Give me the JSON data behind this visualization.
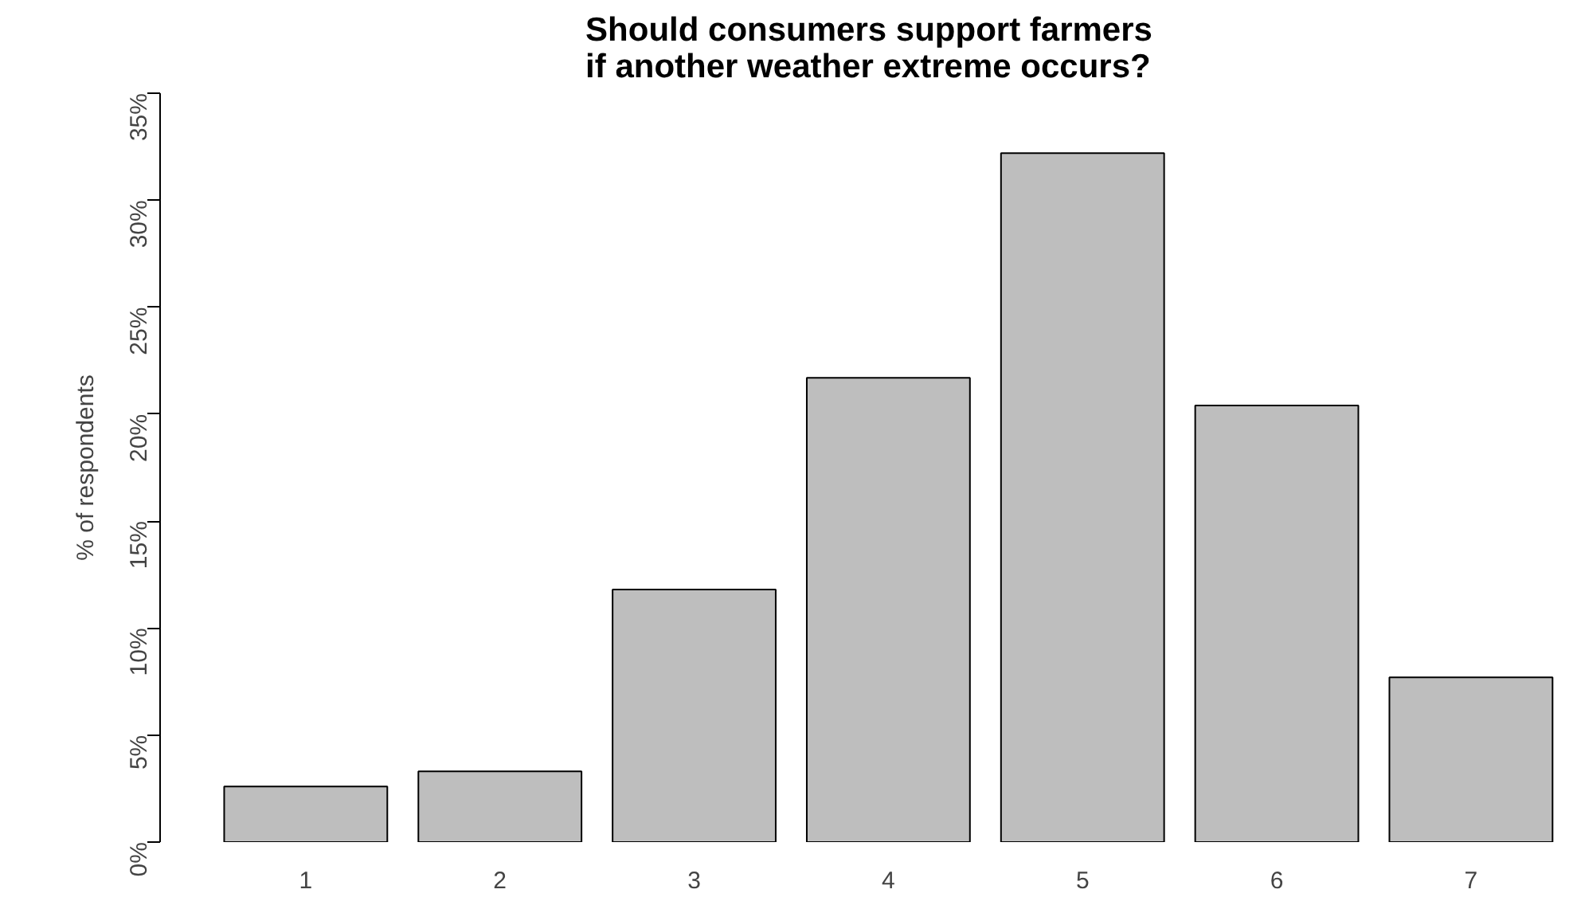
{
  "chart_data": {
    "type": "bar",
    "title": "Should consumers support farmers if another weather extreme occurs?",
    "ylabel": "% of respondents",
    "categories": [
      "1",
      "2",
      "3",
      "4",
      "5",
      "6",
      "7"
    ],
    "values": [
      2.6,
      3.3,
      11.8,
      21.7,
      32.2,
      20.4,
      7.7
    ],
    "color": "#bebebe",
    "ylim": [
      0,
      35
    ],
    "yticks": [
      {
        "value": 0,
        "label": "0%"
      },
      {
        "value": 5,
        "label": "5%"
      },
      {
        "value": 10,
        "label": "10%"
      },
      {
        "value": 15,
        "label": "15%"
      },
      {
        "value": 20,
        "label": "20%"
      },
      {
        "value": 25,
        "label": "25%"
      },
      {
        "value": 30,
        "label": "30%"
      },
      {
        "value": 35,
        "label": "35%"
      }
    ],
    "grid": false
  }
}
